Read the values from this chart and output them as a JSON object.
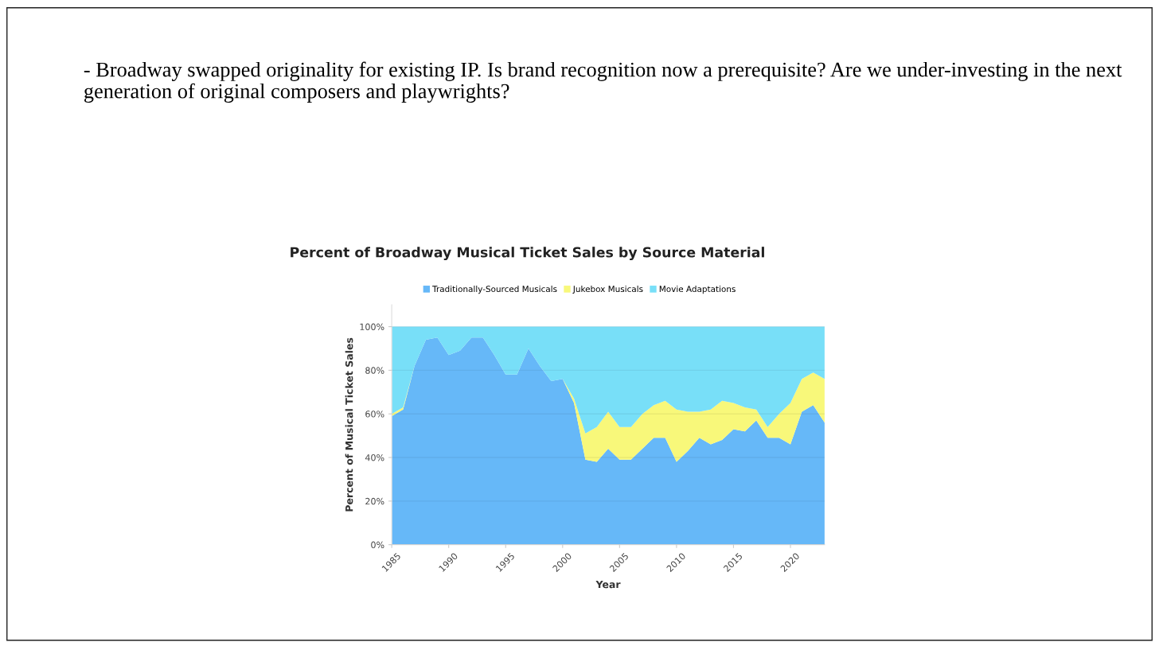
{
  "chart_data": {
    "type": "area",
    "stacked": true,
    "title": "Percent of Broadway Musical Ticket Sales by Source Material",
    "xlabel": "Year",
    "ylabel": "Percent of Musical Ticket Sales",
    "annotations": [
      "- Broadway swapped originality for existing IP. Is brand recognition now a prerequisite? Are we under-investing in the next generation of original composers and playwrights?"
    ],
    "x": [
      1985,
      1986,
      1987,
      1988,
      1989,
      1990,
      1991,
      1992,
      1993,
      1994,
      1995,
      1996,
      1997,
      1998,
      1999,
      2000,
      2001,
      2002,
      2003,
      2004,
      2005,
      2006,
      2007,
      2008,
      2009,
      2010,
      2011,
      2012,
      2013,
      2014,
      2015,
      2016,
      2017,
      2018,
      2019,
      2020,
      2021,
      2022,
      2023
    ],
    "series": [
      {
        "name": "Traditionally-Sourced Musicals",
        "color": "#66b8f8",
        "values": [
          59,
          62,
          82,
          94,
          95,
          87,
          89,
          95,
          95,
          87,
          78,
          78,
          90,
          82,
          75,
          76,
          65,
          39,
          38,
          44,
          39,
          39,
          44,
          49,
          49,
          38,
          43,
          49,
          46,
          48,
          53,
          52,
          57,
          49,
          49,
          46,
          61,
          64,
          56
        ]
      },
      {
        "name": "Jukebox Musicals",
        "color": "#f8f87a",
        "values": [
          1,
          1,
          0,
          0,
          0,
          0,
          0,
          0,
          0,
          0,
          0,
          0,
          0,
          0,
          0,
          0,
          2,
          12,
          16,
          17,
          15,
          15,
          16,
          15,
          17,
          24,
          18,
          12,
          16,
          18,
          12,
          11,
          5,
          5,
          11,
          19,
          15,
          15,
          20
        ]
      },
      {
        "name": "Movie Adaptations",
        "color": "#78dff8",
        "values": [
          40,
          37,
          18,
          6,
          5,
          13,
          11,
          5,
          5,
          13,
          22,
          22,
          10,
          18,
          25,
          24,
          33,
          49,
          46,
          39,
          46,
          46,
          40,
          36,
          34,
          38,
          39,
          39,
          38,
          34,
          35,
          37,
          38,
          46,
          40,
          35,
          24,
          21,
          24
        ]
      }
    ],
    "xlim": [
      1985,
      2023
    ],
    "xticks": [
      1985,
      1990,
      1995,
      2000,
      2005,
      2010,
      2015,
      2020
    ],
    "ylim": [
      0,
      110
    ],
    "yticks": [
      {
        "value": 0,
        "label": "0%"
      },
      {
        "value": 20,
        "label": "20%"
      },
      {
        "value": 40,
        "label": "40%"
      },
      {
        "value": 60,
        "label": "60%"
      },
      {
        "value": 80,
        "label": "80%"
      },
      {
        "value": 100,
        "label": "100%"
      }
    ],
    "grid": "y",
    "legend": "top"
  }
}
